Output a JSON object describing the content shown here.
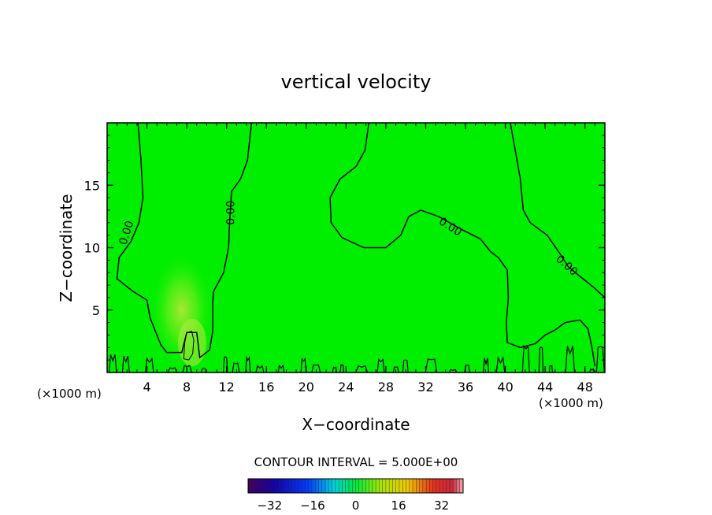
{
  "chart_data": {
    "type": "heatmap",
    "title": "vertical velocity",
    "xlabel": "X−coordinate",
    "ylabel": "Z−coordinate",
    "x_unit_left": "(×1000 m)",
    "x_unit_right": "(×1000 m)",
    "xlim": [
      0,
      50
    ],
    "ylim": [
      0,
      20
    ],
    "x_ticks": [
      4,
      8,
      12,
      16,
      20,
      24,
      28,
      32,
      36,
      40,
      44,
      48
    ],
    "y_ticks": [
      5,
      10,
      15
    ],
    "contour_label": "0.00",
    "contour_interval_text": "CONTOUR INTERVAL = 5.000E+00",
    "colorbar": {
      "range": [
        -40,
        40
      ],
      "ticks": [
        -32,
        -16,
        0,
        16,
        32
      ]
    },
    "field_color": "#00ee00",
    "contour_color": "#000000",
    "updraft_center": {
      "x": 7.5,
      "z": 5
    },
    "contours_zero": [
      [
        [
          3.1,
          20
        ],
        [
          3.4,
          17
        ],
        [
          3.6,
          14
        ],
        [
          3.2,
          12
        ],
        [
          2.4,
          10.5
        ],
        [
          1.2,
          9.2
        ],
        [
          1.0,
          7.5
        ],
        [
          2.6,
          6.5
        ],
        [
          4.0,
          5.8
        ],
        [
          4.3,
          4.4
        ],
        [
          5.4,
          2.2
        ],
        [
          6.0,
          1.6
        ],
        [
          7.5,
          1.6
        ],
        [
          8.0,
          3.2
        ],
        [
          9.0,
          3.2
        ],
        [
          9.3,
          1.2
        ],
        [
          10.3,
          1.8
        ],
        [
          10.6,
          3.3
        ],
        [
          10.6,
          5.5
        ],
        [
          10.7,
          6.5
        ],
        [
          11.7,
          8.0
        ],
        [
          12.2,
          10.0
        ],
        [
          12.3,
          12.0
        ],
        [
          12.5,
          14.5
        ],
        [
          13.4,
          15.5
        ],
        [
          14.1,
          17.0
        ],
        [
          14.5,
          20
        ]
      ],
      [
        [
          26.3,
          20
        ],
        [
          25.9,
          17.8
        ],
        [
          25.0,
          16.5
        ],
        [
          23.4,
          15.5
        ],
        [
          22.4,
          14.0
        ],
        [
          22.5,
          12.0
        ],
        [
          23.6,
          10.8
        ],
        [
          25.8,
          10.0
        ],
        [
          28.0,
          10.0
        ],
        [
          29.5,
          11.0
        ],
        [
          30.3,
          12.5
        ],
        [
          31.5,
          13.0
        ],
        [
          33.3,
          12.5
        ],
        [
          35.5,
          11.5
        ],
        [
          37.5,
          10.7
        ],
        [
          38.5,
          9.7
        ],
        [
          39.3,
          9.2
        ],
        [
          40.2,
          8.2
        ],
        [
          40.3,
          6.0
        ],
        [
          40.1,
          4.0
        ],
        [
          40.2,
          2.4
        ],
        [
          41.5,
          2.0
        ],
        [
          43.0,
          2.3
        ],
        [
          44.0,
          3.0
        ],
        [
          45.0,
          3.4
        ],
        [
          46.0,
          4.0
        ],
        [
          47.5,
          4.2
        ],
        [
          48.3,
          3.5
        ],
        [
          48.7,
          2.0
        ],
        [
          49.0,
          0.5
        ]
      ],
      [
        [
          40.5,
          20
        ],
        [
          41.0,
          17.8
        ],
        [
          41.5,
          15.5
        ],
        [
          41.8,
          13.0
        ],
        [
          42.5,
          12.0
        ],
        [
          44.2,
          11.0
        ],
        [
          45.5,
          9.5
        ],
        [
          46.3,
          8.5
        ],
        [
          47.5,
          7.7
        ],
        [
          48.9,
          6.8
        ],
        [
          50.0,
          6.0
        ]
      ]
    ],
    "contours_positive": [
      [
        [
          8.0,
          3.2
        ],
        [
          8.5,
          3.3
        ],
        [
          8.7,
          2.6
        ],
        [
          8.6,
          1.5
        ],
        [
          8.2,
          1.0
        ],
        [
          7.7,
          1.1
        ],
        [
          7.8,
          2.4
        ],
        [
          8.0,
          3.2
        ]
      ]
    ]
  }
}
